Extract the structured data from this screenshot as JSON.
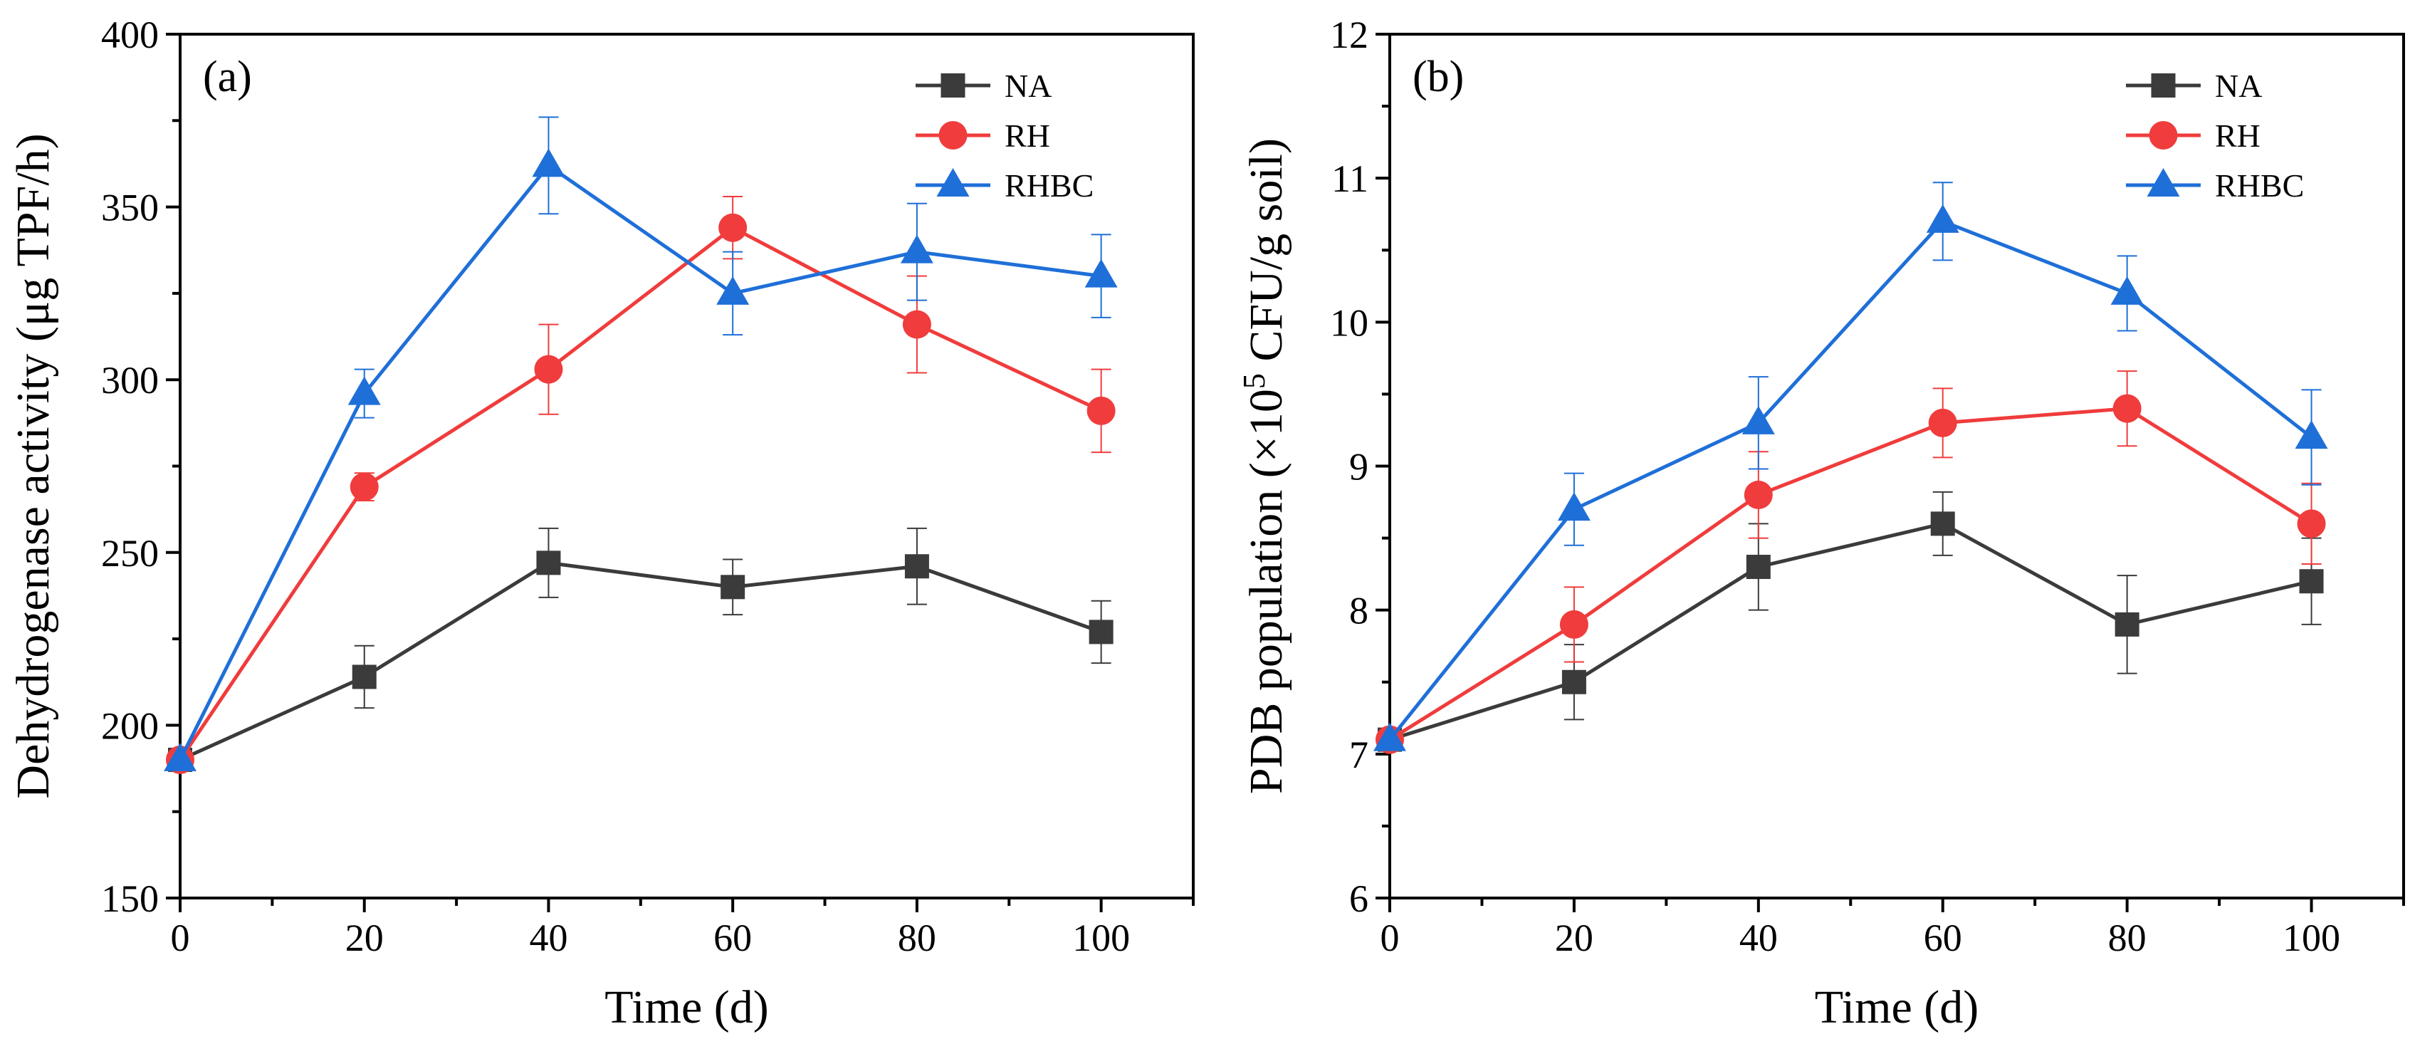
{
  "chart_data": [
    {
      "type": "line",
      "panel_label": "(a)",
      "xlabel": "Time (d)",
      "ylabel": "Dehydrogenase activity (μg TPF/h)",
      "x": [
        0,
        20,
        40,
        60,
        80,
        100
      ],
      "xlim": [
        0,
        110
      ],
      "ylim": [
        150,
        400
      ],
      "xticks": [
        0,
        20,
        40,
        60,
        80,
        100
      ],
      "yticks": [
        150,
        200,
        250,
        300,
        350,
        400
      ],
      "legend_position": "top-right",
      "series": [
        {
          "name": "NA",
          "color": "#3b3b3b",
          "marker": "square",
          "values": [
            190,
            214,
            247,
            240,
            246,
            227
          ],
          "errors": [
            0,
            9,
            10,
            8,
            11,
            9
          ]
        },
        {
          "name": "RH",
          "color": "#f03c3c",
          "marker": "circle",
          "values": [
            190,
            269,
            303,
            344,
            316,
            291
          ],
          "errors": [
            0,
            4,
            13,
            9,
            14,
            12
          ]
        },
        {
          "name": "RHBC",
          "color": "#1f6fd8",
          "marker": "triangle",
          "values": [
            190,
            296,
            362,
            325,
            337,
            330
          ],
          "errors": [
            0,
            7,
            14,
            12,
            14,
            12
          ]
        }
      ]
    },
    {
      "type": "line",
      "panel_label": "(b)",
      "xlabel": "Time (d)",
      "ylabel_parts": [
        "PDB population (×10",
        "5",
        " CFU/g soil)"
      ],
      "x": [
        0,
        20,
        40,
        60,
        80,
        100
      ],
      "xlim": [
        0,
        110
      ],
      "ylim": [
        6,
        12
      ],
      "xticks": [
        0,
        20,
        40,
        60,
        80,
        100
      ],
      "yticks": [
        6,
        7,
        8,
        9,
        10,
        11,
        12
      ],
      "legend_position": "top-right",
      "series": [
        {
          "name": "NA",
          "color": "#3b3b3b",
          "marker": "square",
          "values": [
            7.1,
            7.5,
            8.3,
            8.6,
            7.9,
            8.2
          ],
          "errors": [
            0,
            0.26,
            0.3,
            0.22,
            0.34,
            0.3
          ]
        },
        {
          "name": "RH",
          "color": "#f03c3c",
          "marker": "circle",
          "values": [
            7.1,
            7.9,
            8.8,
            9.3,
            9.4,
            8.6
          ],
          "errors": [
            0,
            0.26,
            0.3,
            0.24,
            0.26,
            0.28
          ]
        },
        {
          "name": "RHBC",
          "color": "#1f6fd8",
          "marker": "triangle",
          "values": [
            7.1,
            8.7,
            9.3,
            10.7,
            10.2,
            9.2
          ],
          "errors": [
            0,
            0.25,
            0.32,
            0.27,
            0.26,
            0.33
          ]
        }
      ]
    }
  ]
}
